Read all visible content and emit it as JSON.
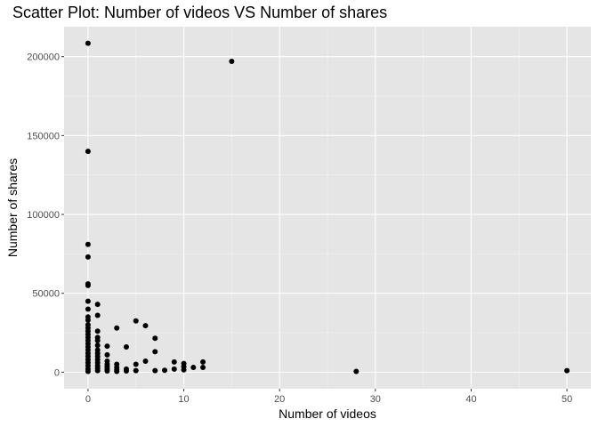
{
  "chart_data": {
    "type": "scatter",
    "title": "Scatter Plot: Number of videos VS Number of shares",
    "xlabel": "Number of videos",
    "ylabel": "Number of shares",
    "xlim": [
      -2.5,
      52.5
    ],
    "ylim": [
      -10500,
      219000
    ],
    "x_ticks": [
      0,
      10,
      20,
      30,
      40,
      50
    ],
    "x_tick_labels": [
      "0",
      "10",
      "20",
      "30",
      "40",
      "50"
    ],
    "y_ticks": [
      0,
      50000,
      100000,
      150000,
      200000
    ],
    "y_tick_labels": [
      "0",
      "50000",
      "100000",
      "150000",
      "200000"
    ],
    "grid": true,
    "colors": {
      "panel": "#e5e5e5",
      "grid_major": "#ffffff",
      "point": "#000000",
      "tick_text": "#4d4d4d"
    },
    "points": [
      {
        "x": 0,
        "y": 208500
      },
      {
        "x": 0,
        "y": 140000
      },
      {
        "x": 0,
        "y": 81000
      },
      {
        "x": 0,
        "y": 73000
      },
      {
        "x": 0,
        "y": 56000
      },
      {
        "x": 0,
        "y": 55000
      },
      {
        "x": 0,
        "y": 45000
      },
      {
        "x": 0,
        "y": 40000
      },
      {
        "x": 0,
        "y": 35000
      },
      {
        "x": 0,
        "y": 33000
      },
      {
        "x": 0,
        "y": 30000
      },
      {
        "x": 0,
        "y": 28000
      },
      {
        "x": 0,
        "y": 26000
      },
      {
        "x": 0,
        "y": 24000
      },
      {
        "x": 0,
        "y": 22000
      },
      {
        "x": 0,
        "y": 20000
      },
      {
        "x": 0,
        "y": 18000
      },
      {
        "x": 0,
        "y": 16000
      },
      {
        "x": 0,
        "y": 14000
      },
      {
        "x": 0,
        "y": 12000
      },
      {
        "x": 0,
        "y": 10000
      },
      {
        "x": 0,
        "y": 8000
      },
      {
        "x": 0,
        "y": 6000
      },
      {
        "x": 0,
        "y": 4000
      },
      {
        "x": 0,
        "y": 2000
      },
      {
        "x": 0,
        "y": 500
      },
      {
        "x": 1,
        "y": 43000
      },
      {
        "x": 1,
        "y": 36000
      },
      {
        "x": 1,
        "y": 26000
      },
      {
        "x": 1,
        "y": 22000
      },
      {
        "x": 1,
        "y": 20000
      },
      {
        "x": 1,
        "y": 17000
      },
      {
        "x": 1,
        "y": 14000
      },
      {
        "x": 1,
        "y": 12000
      },
      {
        "x": 1,
        "y": 10000
      },
      {
        "x": 1,
        "y": 8000
      },
      {
        "x": 1,
        "y": 6000
      },
      {
        "x": 1,
        "y": 4000
      },
      {
        "x": 1,
        "y": 2500
      },
      {
        "x": 1,
        "y": 1000
      },
      {
        "x": 2,
        "y": 16500
      },
      {
        "x": 2,
        "y": 11000
      },
      {
        "x": 2,
        "y": 7000
      },
      {
        "x": 2,
        "y": 5000
      },
      {
        "x": 2,
        "y": 3500
      },
      {
        "x": 2,
        "y": 2000
      },
      {
        "x": 2,
        "y": 800
      },
      {
        "x": 3,
        "y": 28000
      },
      {
        "x": 3,
        "y": 5000
      },
      {
        "x": 3,
        "y": 3000
      },
      {
        "x": 3,
        "y": 1500
      },
      {
        "x": 3,
        "y": 500
      },
      {
        "x": 4,
        "y": 16000
      },
      {
        "x": 4,
        "y": 2000
      },
      {
        "x": 4,
        "y": 800
      },
      {
        "x": 5,
        "y": 32500
      },
      {
        "x": 5,
        "y": 5000
      },
      {
        "x": 5,
        "y": 1000
      },
      {
        "x": 6,
        "y": 29500
      },
      {
        "x": 6,
        "y": 7000
      },
      {
        "x": 7,
        "y": 21500
      },
      {
        "x": 7,
        "y": 13000
      },
      {
        "x": 7,
        "y": 1000
      },
      {
        "x": 8,
        "y": 1200
      },
      {
        "x": 9,
        "y": 6500
      },
      {
        "x": 9,
        "y": 2000
      },
      {
        "x": 10,
        "y": 5500
      },
      {
        "x": 10,
        "y": 3500
      },
      {
        "x": 10,
        "y": 1500
      },
      {
        "x": 11,
        "y": 3000
      },
      {
        "x": 12,
        "y": 6500
      },
      {
        "x": 12,
        "y": 3000
      },
      {
        "x": 15,
        "y": 197000
      },
      {
        "x": 28,
        "y": 500
      },
      {
        "x": 50,
        "y": 1000
      }
    ]
  }
}
